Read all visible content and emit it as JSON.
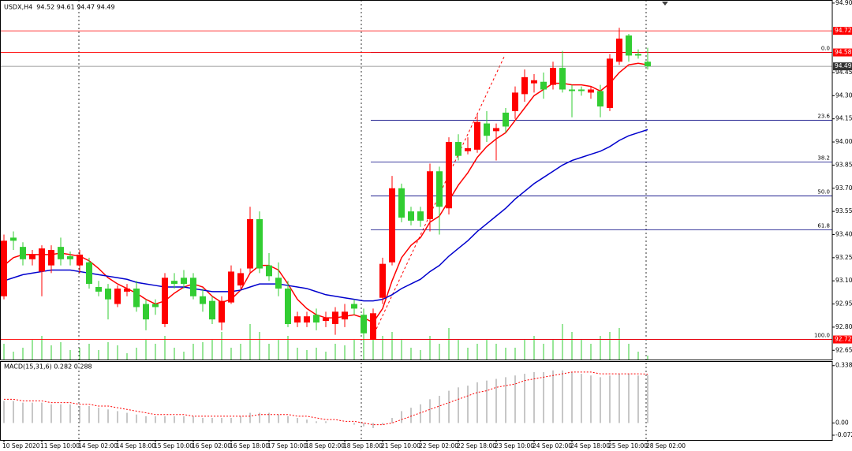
{
  "chart_data": [
    {
      "type": "candlestick",
      "title": "USDX,H4  94.52 94.61 94.47 94.49",
      "categories": [
        "10 Sep 2020",
        null,
        null,
        null,
        "11 Sep 10:00",
        null,
        null,
        null,
        "14 Sep 02:00",
        null,
        null,
        null,
        "14 Sep 18:00",
        null,
        null,
        null,
        "15 Sep 10:00",
        null,
        null,
        null,
        "16 Sep 02:00",
        null,
        null,
        null,
        "16 Sep 18:00",
        null,
        null,
        null,
        "17 Sep 10:00",
        null,
        null,
        null,
        "18 Sep 02:00",
        null,
        null,
        null,
        "18 Sep 18:00",
        null,
        null,
        null,
        "21 Sep 10:00",
        null,
        null,
        null,
        "22 Sep 02:00",
        null,
        null,
        null,
        "22 Sep 18:00",
        null,
        null,
        null,
        "23 Sep 10:00",
        null,
        null,
        null,
        "24 Sep 02:00",
        null,
        null,
        null,
        "24 Sep 18:00",
        null,
        null,
        null,
        "25 Sep 10:00",
        null,
        null,
        null,
        "28 Sep 02:00"
      ],
      "open": [
        93.0,
        93.38,
        93.32,
        93.24,
        93.16,
        93.2,
        93.32,
        93.26,
        93.2,
        93.22,
        93.06,
        93.05,
        92.95,
        93.03,
        93.05,
        92.95,
        92.95,
        92.82,
        93.1,
        93.12,
        93.12,
        93.0,
        92.97,
        92.83,
        92.96,
        93.07,
        93.18,
        93.5,
        93.2,
        93.12,
        93.05,
        92.83,
        92.83,
        92.88,
        92.84,
        92.82,
        92.85,
        92.95,
        92.88,
        92.72,
        92.99,
        93.22,
        93.7,
        93.55,
        93.55,
        93.5,
        93.81,
        93.57,
        94.0,
        93.94,
        93.95,
        94.12,
        94.07,
        94.19,
        94.2,
        94.31,
        94.38,
        94.39,
        94.37,
        94.48,
        94.34,
        94.34,
        94.32,
        94.33,
        94.22,
        94.52,
        94.69,
        94.57,
        94.52
      ],
      "high": [
        93.4,
        93.42,
        93.35,
        93.3,
        93.33,
        93.33,
        93.38,
        93.29,
        93.3,
        93.25,
        93.1,
        93.08,
        93.07,
        93.08,
        93.1,
        92.98,
        92.98,
        93.15,
        93.15,
        93.17,
        93.15,
        93.05,
        93.0,
        93.0,
        93.2,
        93.18,
        93.58,
        93.55,
        93.28,
        93.22,
        93.1,
        92.9,
        92.9,
        92.92,
        92.9,
        92.93,
        92.95,
        92.98,
        92.92,
        92.92,
        93.25,
        93.78,
        93.73,
        93.58,
        93.58,
        93.86,
        93.84,
        94.03,
        94.05,
        94.03,
        94.18,
        94.2,
        94.12,
        94.22,
        94.36,
        94.47,
        94.44,
        94.45,
        94.52,
        94.59,
        94.37,
        94.36,
        94.36,
        94.37,
        94.57,
        94.74,
        94.7,
        94.6,
        94.61
      ],
      "low": [
        92.98,
        93.3,
        93.2,
        93.2,
        93.0,
        93.15,
        93.2,
        93.2,
        93.15,
        93.05,
        93.0,
        92.85,
        92.93,
        93.0,
        92.9,
        92.78,
        92.88,
        92.8,
        93.05,
        93.05,
        92.98,
        92.9,
        92.82,
        92.78,
        92.95,
        93.05,
        93.15,
        93.15,
        93.1,
        93.0,
        92.8,
        92.8,
        92.8,
        92.78,
        92.8,
        92.75,
        92.8,
        92.88,
        92.74,
        92.72,
        92.95,
        93.2,
        93.48,
        93.46,
        93.45,
        93.42,
        93.4,
        93.53,
        93.88,
        93.92,
        93.93,
        94.0,
        93.88,
        94.06,
        94.15,
        94.26,
        94.32,
        94.28,
        94.34,
        94.32,
        94.16,
        94.3,
        94.28,
        94.16,
        94.2,
        94.5,
        94.52,
        94.54,
        94.47
      ],
      "close": [
        93.36,
        93.36,
        93.24,
        93.27,
        93.31,
        93.3,
        93.24,
        93.24,
        93.27,
        93.08,
        93.03,
        92.98,
        93.05,
        93.05,
        92.93,
        92.85,
        92.93,
        93.12,
        93.08,
        93.08,
        93.0,
        92.95,
        92.85,
        92.97,
        93.16,
        93.15,
        93.5,
        93.18,
        93.13,
        93.05,
        92.82,
        92.87,
        92.87,
        92.83,
        92.86,
        92.9,
        92.9,
        92.92,
        92.76,
        92.89,
        93.21,
        93.7,
        93.51,
        93.49,
        93.49,
        93.81,
        93.58,
        94.0,
        93.91,
        93.96,
        94.13,
        94.04,
        94.09,
        94.1,
        94.32,
        94.42,
        94.4,
        94.34,
        94.48,
        94.34,
        94.33,
        94.33,
        94.34,
        94.23,
        94.54,
        94.67,
        94.56,
        94.56,
        94.49
      ],
      "up_color": "#ff0000",
      "down_color": "#32cd32",
      "lines": [
        {
          "color": "#ff0000",
          "values": [
            93.2,
            93.25,
            93.27,
            93.27,
            93.27,
            93.27,
            93.28,
            93.27,
            93.26,
            93.23,
            93.18,
            93.12,
            93.08,
            93.05,
            93.02,
            92.98,
            92.95,
            92.97,
            93.02,
            93.06,
            93.08,
            93.06,
            93.0,
            92.96,
            92.98,
            93.04,
            93.15,
            93.2,
            93.2,
            93.17,
            93.08,
            92.98,
            92.92,
            92.88,
            92.86,
            92.86,
            92.87,
            92.88,
            92.86,
            92.83,
            92.92,
            93.1,
            93.25,
            93.33,
            93.38,
            93.48,
            93.52,
            93.62,
            93.72,
            93.8,
            93.9,
            93.97,
            94.02,
            94.06,
            94.14,
            94.22,
            94.3,
            94.34,
            94.38,
            94.38,
            94.37,
            94.37,
            94.36,
            94.33,
            94.38,
            94.45,
            94.5,
            94.51,
            94.5
          ]
        },
        {
          "color": "#0000cd",
          "values": [
            93.1,
            93.12,
            93.14,
            93.15,
            93.16,
            93.17,
            93.17,
            93.17,
            93.16,
            93.15,
            93.14,
            93.13,
            93.12,
            93.11,
            93.09,
            93.08,
            93.07,
            93.06,
            93.06,
            93.06,
            93.05,
            93.04,
            93.03,
            93.03,
            93.03,
            93.04,
            93.06,
            93.08,
            93.08,
            93.08,
            93.07,
            93.06,
            93.05,
            93.03,
            93.01,
            93.0,
            92.99,
            92.98,
            92.97,
            92.97,
            92.98,
            93.01,
            93.05,
            93.08,
            93.11,
            93.16,
            93.2,
            93.26,
            93.31,
            93.36,
            93.42,
            93.47,
            93.52,
            93.57,
            93.63,
            93.68,
            93.73,
            93.77,
            93.81,
            93.85,
            93.88,
            93.9,
            93.92,
            93.94,
            93.97,
            94.01,
            94.04,
            94.06,
            94.08
          ]
        }
      ],
      "volume": {
        "color": "#32cd32",
        "values": [
          20,
          10,
          15,
          25,
          30,
          18,
          22,
          12,
          15,
          20,
          12,
          22,
          18,
          8,
          15,
          25,
          20,
          30,
          15,
          10,
          20,
          22,
          25,
          35,
          15,
          20,
          45,
          35,
          20,
          25,
          30,
          15,
          12,
          15,
          10,
          20,
          18,
          25,
          35,
          40,
          30,
          35,
          25,
          15,
          12,
          30,
          20,
          40,
          25,
          15,
          20,
          25,
          20,
          15,
          15,
          25,
          30,
          20,
          25,
          45,
          35,
          25,
          20,
          30,
          35,
          40,
          20,
          10,
          5
        ]
      },
      "hlines": [
        {
          "value": 94.72,
          "color": "#ff0000"
        },
        {
          "value": 94.58,
          "color": "#ff0000"
        },
        {
          "value": 94.49,
          "color": "#808080"
        },
        {
          "value": 92.72,
          "color": "#ff0000"
        }
      ],
      "fibo": {
        "color": "#000080",
        "from": 94.58,
        "to": 92.72,
        "levels": [
          {
            "value": 0,
            "label": "0.0"
          },
          23.6,
          38.2,
          {
            "value": 50,
            "label": "50.0"
          },
          61.8,
          {
            "value": 100,
            "label": "100.0"
          }
        ]
      },
      "ylim": [
        92.59,
        94.92
      ],
      "yticks": [
        {
          "value": 92.65,
          "label": "92.65"
        },
        {
          "value": 92.8,
          "label": "92.80"
        },
        {
          "value": 92.95,
          "label": "92.95"
        },
        {
          "value": 93.1,
          "label": "93.10"
        },
        {
          "value": 93.25,
          "label": "93.25"
        },
        {
          "value": 93.4,
          "label": "93.40"
        },
        {
          "value": 93.55,
          "label": "93.55"
        },
        {
          "value": 93.7,
          "label": "93.70"
        },
        {
          "value": 93.85,
          "label": "93.85"
        },
        {
          "value": 94,
          "label": "94.00"
        },
        {
          "value": 94.15,
          "label": "94.15"
        },
        {
          "value": 94.3,
          "label": "94.30"
        },
        {
          "value": 94.45,
          "label": "94.45"
        },
        {
          "value": 94.9,
          "label": "94.90"
        }
      ]
    },
    {
      "type": "macd",
      "title": "MACD(15,31,6) 0.282 0.288",
      "histogram": {
        "color": "#b4b4b4",
        "values": [
          0.13,
          0.13,
          0.12,
          0.12,
          0.12,
          0.11,
          0.11,
          0.11,
          0.1,
          0.1,
          0.09,
          0.08,
          0.07,
          0.06,
          0.05,
          0.04,
          0.04,
          0.04,
          0.04,
          0.04,
          0.04,
          0.03,
          0.03,
          0.03,
          0.03,
          0.04,
          0.06,
          0.06,
          0.06,
          0.05,
          0.04,
          0.03,
          0.02,
          0.01,
          0.01,
          0.0,
          0.0,
          -0.01,
          -0.02,
          -0.03,
          -0.01,
          0.03,
          0.07,
          0.09,
          0.11,
          0.14,
          0.16,
          0.19,
          0.21,
          0.22,
          0.24,
          0.25,
          0.26,
          0.27,
          0.28,
          0.29,
          0.3,
          0.3,
          0.31,
          0.31,
          0.3,
          0.29,
          0.28,
          0.27,
          0.28,
          0.29,
          0.29,
          0.28,
          0.282
        ]
      },
      "signal": {
        "color": "#ff0000",
        "values": [
          0.14,
          0.14,
          0.13,
          0.13,
          0.13,
          0.12,
          0.12,
          0.12,
          0.11,
          0.11,
          0.1,
          0.1,
          0.09,
          0.08,
          0.07,
          0.06,
          0.05,
          0.05,
          0.05,
          0.05,
          0.04,
          0.04,
          0.04,
          0.04,
          0.04,
          0.04,
          0.04,
          0.05,
          0.05,
          0.05,
          0.05,
          0.04,
          0.04,
          0.03,
          0.02,
          0.02,
          0.01,
          0.01,
          0.0,
          -0.01,
          -0.01,
          0.0,
          0.02,
          0.04,
          0.06,
          0.08,
          0.1,
          0.12,
          0.14,
          0.16,
          0.18,
          0.19,
          0.21,
          0.22,
          0.23,
          0.25,
          0.26,
          0.27,
          0.28,
          0.29,
          0.3,
          0.3,
          0.3,
          0.29,
          0.29,
          0.29,
          0.29,
          0.29,
          0.288
        ]
      },
      "ylim": [
        -0.1,
        0.36
      ],
      "yticks": [
        0.338,
        {
          "value": 0,
          "label": "0.00"
        },
        -0.072
      ]
    }
  ]
}
